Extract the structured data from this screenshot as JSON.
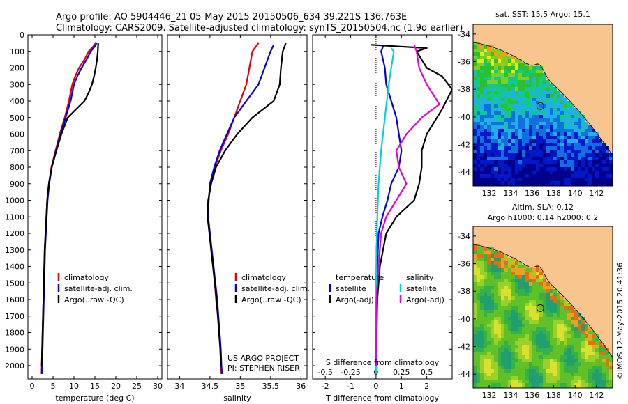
{
  "header": {
    "title_line1": "Argo profile: AO 5904446_21 05-May-2015 20150506_634 39.221S 136.763E",
    "title_line2": "Climatology: CARS2009. Satellite-adjusted climatology: synTS_20150504.nc (1.9d earlier)"
  },
  "colors": {
    "climatology": "#e00000",
    "satellite": "#0000e0",
    "argo": "#000000",
    "sal_sat": "#00d0e0",
    "sal_argo": "#e000e0",
    "land": "#f9c58e",
    "ocean_warm": "#7ec832"
  },
  "chart_data": [
    {
      "type": "line",
      "xlabel": "temperature (deg C)",
      "ylabel": "",
      "xlim": [
        -1,
        31
      ],
      "ylim": [
        2080,
        0
      ],
      "xticks": [
        0,
        5,
        10,
        15,
        20,
        25,
        30
      ],
      "yticks": [
        0,
        100,
        200,
        300,
        400,
        500,
        600,
        700,
        800,
        900,
        1000,
        1100,
        1200,
        1300,
        1400,
        1500,
        1600,
        1700,
        1800,
        1900,
        2000
      ],
      "legend": [
        "climatology",
        "satellite-adj. clim.",
        "Argo(..raw -QC)"
      ],
      "series": [
        {
          "name": "climatology",
          "color": "#e00000",
          "points": [
            [
              15.2,
              50
            ],
            [
              14.6,
              70
            ],
            [
              13.5,
              100
            ],
            [
              12.5,
              150
            ],
            [
              11.2,
              200
            ],
            [
              10.3,
              250
            ],
            [
              9.6,
              300
            ],
            [
              8.8,
              400
            ],
            [
              7.8,
              500
            ],
            [
              6.6,
              600
            ],
            [
              5.6,
              700
            ],
            [
              4.6,
              800
            ],
            [
              4.0,
              900
            ],
            [
              3.6,
              1000
            ],
            [
              3.4,
              1100
            ],
            [
              3.2,
              1200
            ],
            [
              3.0,
              1300
            ],
            [
              2.9,
              1400
            ],
            [
              2.8,
              1500
            ],
            [
              2.7,
              1600
            ],
            [
              2.6,
              1700
            ],
            [
              2.5,
              1800
            ],
            [
              2.4,
              1900
            ],
            [
              2.3,
              2000
            ],
            [
              2.25,
              2050
            ]
          ]
        },
        {
          "name": "satellite-adj. clim.",
          "color": "#0000e0",
          "points": [
            [
              15.4,
              50
            ],
            [
              15.0,
              70
            ],
            [
              14.0,
              100
            ],
            [
              13.0,
              150
            ],
            [
              11.8,
              200
            ],
            [
              10.8,
              250
            ],
            [
              10.0,
              300
            ],
            [
              9.2,
              400
            ],
            [
              8.0,
              500
            ],
            [
              6.8,
              600
            ],
            [
              5.7,
              700
            ],
            [
              4.7,
              800
            ],
            [
              4.1,
              900
            ],
            [
              3.7,
              1000
            ],
            [
              3.5,
              1100
            ],
            [
              3.3,
              1200
            ],
            [
              3.1,
              1300
            ],
            [
              3.0,
              1400
            ],
            [
              2.9,
              1500
            ],
            [
              2.8,
              1600
            ],
            [
              2.7,
              1700
            ],
            [
              2.6,
              1800
            ],
            [
              2.5,
              1900
            ],
            [
              2.4,
              2000
            ],
            [
              2.35,
              2050
            ]
          ]
        },
        {
          "name": "Argo(..raw -QC)",
          "color": "#000000",
          "points": [
            [
              15.8,
              50
            ],
            [
              15.7,
              100
            ],
            [
              15.5,
              150
            ],
            [
              15.2,
              200
            ],
            [
              14.8,
              250
            ],
            [
              14.3,
              300
            ],
            [
              13.5,
              350
            ],
            [
              12.5,
              400
            ],
            [
              10.5,
              450
            ],
            [
              8.5,
              500
            ],
            [
              7.0,
              600
            ],
            [
              5.8,
              700
            ],
            [
              4.7,
              800
            ],
            [
              4.0,
              900
            ],
            [
              3.6,
              1000
            ],
            [
              3.4,
              1100
            ],
            [
              3.2,
              1200
            ],
            [
              3.0,
              1300
            ],
            [
              2.9,
              1400
            ],
            [
              2.8,
              1500
            ],
            [
              2.7,
              1600
            ],
            [
              2.6,
              1700
            ],
            [
              2.5,
              1800
            ],
            [
              2.4,
              1900
            ],
            [
              2.3,
              2000
            ]
          ]
        }
      ]
    },
    {
      "type": "line",
      "xlabel": "salinity",
      "xlim": [
        33.8,
        36.1
      ],
      "ylim": [
        2080,
        0
      ],
      "xticks": [
        34,
        34.5,
        35,
        35.5,
        36
      ],
      "legend": [
        "climatology",
        "satellite-adj. clim.",
        "Argo(..raw -QC)"
      ],
      "annotation": [
        "US ARGO PROJECT",
        "PI: STEPHEN RISER"
      ],
      "series": [
        {
          "name": "climatology",
          "color": "#e00000",
          "points": [
            [
              35.3,
              50
            ],
            [
              35.2,
              100
            ],
            [
              35.15,
              200
            ],
            [
              35.1,
              300
            ],
            [
              35.0,
              400
            ],
            [
              34.9,
              500
            ],
            [
              34.8,
              600
            ],
            [
              34.68,
              700
            ],
            [
              34.58,
              800
            ],
            [
              34.5,
              900
            ],
            [
              34.48,
              1000
            ],
            [
              34.47,
              1100
            ],
            [
              34.5,
              1200
            ],
            [
              34.52,
              1300
            ],
            [
              34.55,
              1400
            ],
            [
              34.58,
              1500
            ],
            [
              34.6,
              1600
            ],
            [
              34.63,
              1700
            ],
            [
              34.65,
              1800
            ],
            [
              34.67,
              1900
            ],
            [
              34.68,
              2000
            ],
            [
              34.69,
              2050
            ]
          ]
        },
        {
          "name": "satellite-adj. clim.",
          "color": "#0000e0",
          "points": [
            [
              35.55,
              60
            ],
            [
              35.5,
              100
            ],
            [
              35.4,
              200
            ],
            [
              35.3,
              300
            ],
            [
              35.1,
              400
            ],
            [
              34.9,
              500
            ],
            [
              34.78,
              600
            ],
            [
              34.66,
              700
            ],
            [
              34.57,
              800
            ],
            [
              34.5,
              900
            ],
            [
              34.48,
              1000
            ],
            [
              34.47,
              1100
            ],
            [
              34.5,
              1200
            ],
            [
              34.53,
              1300
            ],
            [
              34.56,
              1400
            ],
            [
              34.59,
              1500
            ],
            [
              34.62,
              1600
            ],
            [
              34.64,
              1700
            ],
            [
              34.66,
              1800
            ],
            [
              34.68,
              1900
            ],
            [
              34.69,
              2000
            ],
            [
              34.7,
              2050
            ]
          ]
        },
        {
          "name": "Argo(..raw -QC)",
          "color": "#000000",
          "points": [
            [
              35.75,
              50
            ],
            [
              35.7,
              100
            ],
            [
              35.67,
              200
            ],
            [
              35.65,
              300
            ],
            [
              35.55,
              400
            ],
            [
              35.2,
              500
            ],
            [
              34.95,
              600
            ],
            [
              34.75,
              700
            ],
            [
              34.6,
              800
            ],
            [
              34.52,
              900
            ],
            [
              34.47,
              1000
            ],
            [
              34.46,
              1100
            ],
            [
              34.49,
              1200
            ],
            [
              34.52,
              1300
            ],
            [
              34.55,
              1400
            ],
            [
              34.58,
              1500
            ],
            [
              34.61,
              1600
            ],
            [
              34.63,
              1700
            ],
            [
              34.65,
              1800
            ],
            [
              34.67,
              1900
            ],
            [
              34.68,
              2000
            ]
          ]
        }
      ]
    },
    {
      "type": "line",
      "xlabel": "T difference from climatology",
      "xlabel_top": "S difference from climatology",
      "xlim": [
        -2.5,
        3
      ],
      "ylim": [
        2080,
        0
      ],
      "xticks": [
        -2,
        -1,
        0,
        1,
        2
      ],
      "xticks_top": [
        -0.5,
        -0.25,
        0,
        0.25,
        0.5
      ],
      "legend": [
        "temperature",
        "satellite",
        "Argo(-adj)",
        "salinity",
        "satellite",
        "Argo(-adj)"
      ],
      "series": [
        {
          "name": "temperature satellite",
          "color": "#0000e0",
          "points": [
            [
              0.3,
              60
            ],
            [
              0.2,
              100
            ],
            [
              0.35,
              200
            ],
            [
              0.4,
              300
            ],
            [
              0.6,
              400
            ],
            [
              0.8,
              500
            ],
            [
              0.9,
              600
            ],
            [
              1.0,
              700
            ],
            [
              0.9,
              800
            ],
            [
              0.6,
              900
            ],
            [
              0.45,
              1000
            ],
            [
              0.25,
              1100
            ],
            [
              0.1,
              1200
            ],
            [
              0.05,
              1400
            ],
            [
              0.02,
              1600
            ],
            [
              0,
              2000
            ],
            [
              0,
              2050
            ]
          ]
        },
        {
          "name": "temperature Argo(-adj)",
          "color": "#000000",
          "points": [
            [
              -0.2,
              60
            ],
            [
              2.0,
              80
            ],
            [
              1.6,
              100
            ],
            [
              2.0,
              200
            ],
            [
              2.6,
              250
            ],
            [
              3.0,
              330
            ],
            [
              2.6,
              450
            ],
            [
              2.0,
              600
            ],
            [
              1.8,
              700
            ],
            [
              1.8,
              800
            ],
            [
              1.7,
              900
            ],
            [
              1.5,
              1000
            ],
            [
              0.8,
              1100
            ],
            [
              0.4,
              1200
            ],
            [
              0.15,
              1400
            ],
            [
              0.05,
              1600
            ],
            [
              0,
              2000
            ]
          ]
        },
        {
          "name": "salinity satellite",
          "color": "#00d0e0",
          "points": [
            [
              0.6,
              80
            ],
            [
              0.7,
              100
            ],
            [
              0.6,
              200
            ],
            [
              0.5,
              300
            ],
            [
              0.35,
              500
            ],
            [
              0.2,
              700
            ],
            [
              0.1,
              900
            ],
            [
              0.05,
              1100
            ],
            [
              0.02,
              1300
            ],
            [
              0,
              1500
            ],
            [
              0,
              2050
            ]
          ]
        },
        {
          "name": "salinity Argo(-adj)",
          "color": "#e000e0",
          "points": [
            [
              1.5,
              60
            ],
            [
              1.6,
              100
            ],
            [
              1.7,
              200
            ],
            [
              2.0,
              300
            ],
            [
              2.5,
              420
            ],
            [
              1.8,
              500
            ],
            [
              1.2,
              600
            ],
            [
              0.8,
              700
            ],
            [
              0.9,
              800
            ],
            [
              1.2,
              900
            ],
            [
              0.8,
              1000
            ],
            [
              0.4,
              1100
            ],
            [
              0.2,
              1200
            ],
            [
              0.1,
              1400
            ],
            [
              0.02,
              1600
            ],
            [
              0,
              2000
            ]
          ]
        }
      ]
    },
    {
      "type": "heatmap",
      "title": "sat. SST: 15.5  Argo: 15.1",
      "xticks": [
        132,
        134,
        136,
        138,
        140,
        142
      ],
      "yticks": [
        -34,
        -36,
        -38,
        -40,
        -42,
        -44
      ],
      "xlim": [
        130.5,
        143.5
      ],
      "ylim": [
        -45,
        -33.3
      ],
      "marker": [
        136.763,
        -39.221
      ]
    },
    {
      "type": "heatmap",
      "title": [
        "Altim. SLA: 0.12",
        "Argo h1000: 0.14  h2000: 0.2"
      ],
      "xticks": [
        132,
        134,
        136,
        138,
        140,
        142
      ],
      "yticks": [
        -34,
        -36,
        -38,
        -40,
        -42,
        -44
      ],
      "xlim": [
        130.5,
        143.5
      ],
      "ylim": [
        -45,
        -33.3
      ],
      "marker": [
        136.763,
        -39.221
      ]
    }
  ],
  "footer": {
    "stamp": "©IMOS 12-May-2015 20:41:36"
  }
}
